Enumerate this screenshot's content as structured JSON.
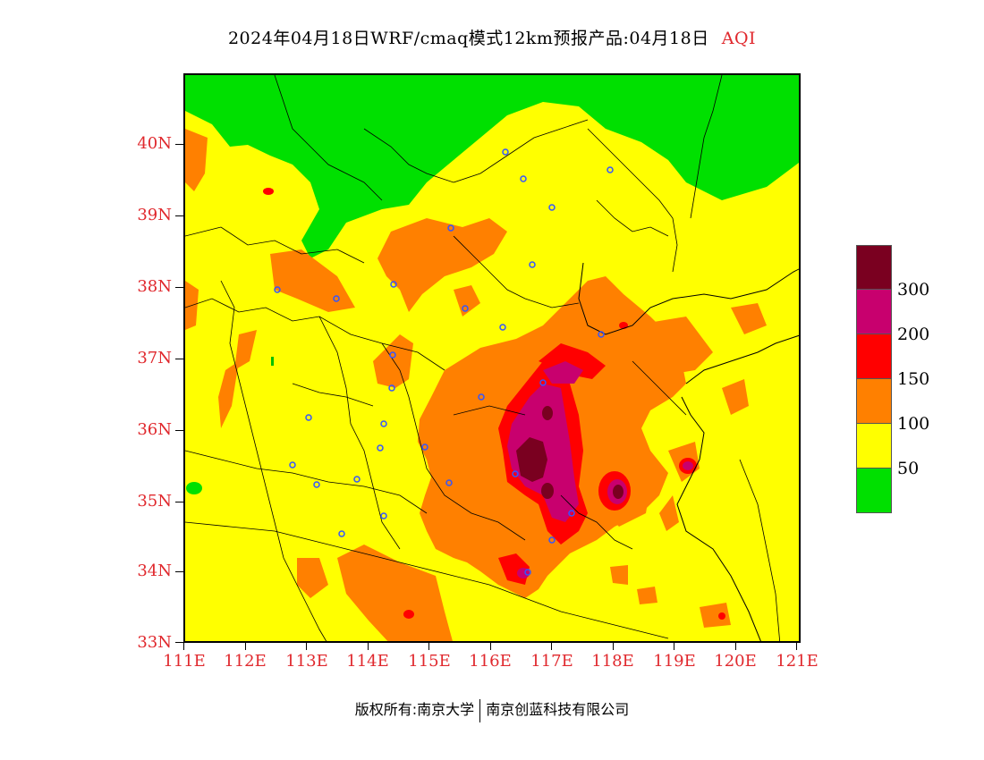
{
  "header": {
    "title": "2024年04月18日WRF/cmaq模式12km预报产品:04月18日",
    "variable": "AQI"
  },
  "axes": {
    "lat_labels": [
      "40N",
      "39N",
      "38N",
      "37N",
      "36N",
      "35N",
      "34N",
      "33N"
    ],
    "lon_labels": [
      "111E",
      "112E",
      "113E",
      "114E",
      "115E",
      "116E",
      "117E",
      "118E",
      "119E",
      "120E",
      "121E"
    ]
  },
  "legend": {
    "labels": [
      "300",
      "200",
      "150",
      "100",
      "50"
    ],
    "colors": [
      "#7a0020",
      "#c8006e",
      "#ff0000",
      "#ff8000",
      "#ffff00",
      "#00e000"
    ]
  },
  "footer": {
    "left": "版权所有:南京大学",
    "right": "南京创蓝科技有限公司"
  },
  "colors": {
    "good": "#00e000",
    "moderate": "#ffff00",
    "unhealthy_sensitive": "#ff8000",
    "unhealthy": "#ff0000",
    "very_unhealthy": "#c8006e",
    "hazardous": "#7a0020",
    "axis_label": "#e0282d"
  }
}
